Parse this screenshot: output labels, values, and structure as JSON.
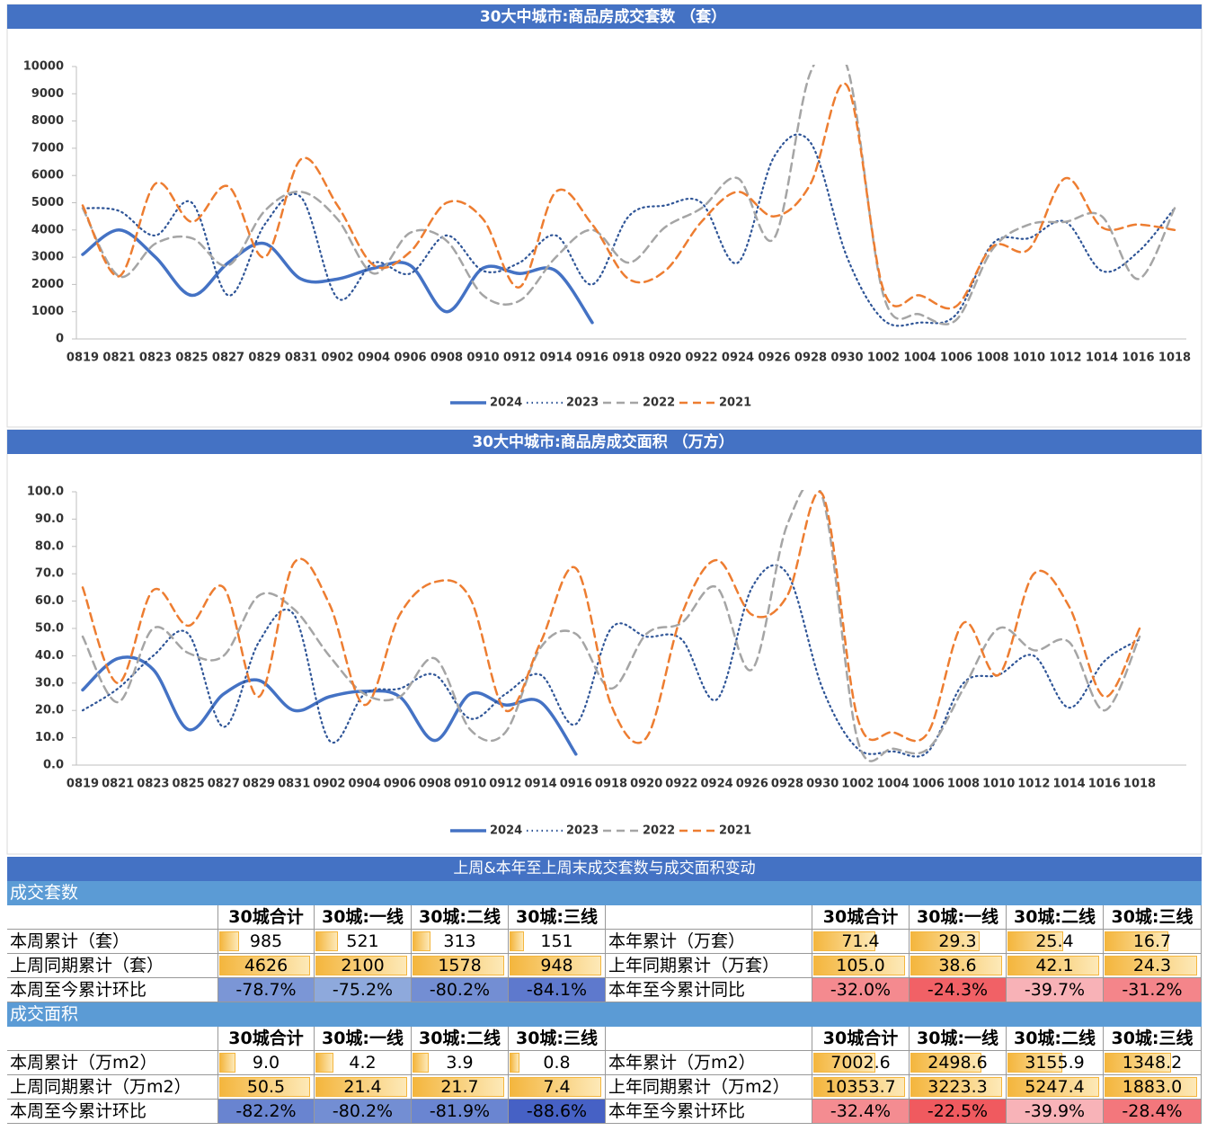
{
  "chart_data": [
    {
      "type": "line",
      "title": "30大中城市:商品房成交套数 （套）",
      "categories": [
        "0819",
        "0821",
        "0823",
        "0825",
        "0827",
        "0829",
        "0831",
        "0902",
        "0904",
        "0906",
        "0908",
        "0910",
        "0912",
        "0914",
        "0916",
        "0918",
        "0920",
        "0922",
        "0924",
        "0926",
        "0928",
        "0930",
        "1002",
        "1004",
        "1006",
        "1008",
        "1010",
        "1012",
        "1014",
        "1016",
        "1018"
      ],
      "series": [
        {
          "name": "2024",
          "color": "#4472c4",
          "dash": "solid",
          "values": [
            3100,
            4000,
            3000,
            1600,
            2800,
            3500,
            2200,
            2200,
            2600,
            2700,
            1000,
            2600,
            2400,
            2500,
            600,
            null,
            null,
            null,
            null,
            null,
            null,
            null,
            null,
            null,
            null,
            null,
            null,
            null,
            null,
            null,
            null
          ]
        },
        {
          "name": "2023",
          "color": "#2f5597",
          "dash": "dotted",
          "values": [
            4800,
            4700,
            3800,
            5000,
            1600,
            4200,
            5200,
            1500,
            2800,
            2400,
            3800,
            2500,
            2800,
            3800,
            2000,
            4500,
            4900,
            5000,
            2800,
            6700,
            7200,
            3000,
            700,
            600,
            900,
            3500,
            3700,
            4300,
            2500,
            3200,
            4800
          ]
        },
        {
          "name": "2022",
          "color": "#a5a5a5",
          "dash": "dashed",
          "values": [
            4800,
            2300,
            3500,
            3700,
            2700,
            4700,
            5400,
            4400,
            2400,
            3900,
            3600,
            1600,
            1400,
            3000,
            4000,
            2800,
            4100,
            4800,
            5900,
            3700,
            9800,
            10000,
            1600,
            900,
            700,
            3300,
            4200,
            4300,
            4500,
            2200,
            4800
          ]
        },
        {
          "name": "2021",
          "color": "#ed7d31",
          "dash": "dashed",
          "values": [
            4900,
            2300,
            5700,
            4300,
            5600,
            3000,
            6600,
            4900,
            2700,
            3200,
            5000,
            4400,
            1900,
            5400,
            4200,
            2200,
            2500,
            4300,
            5400,
            4500,
            5700,
            9300,
            1800,
            1600,
            1200,
            3400,
            3300,
            5900,
            4100,
            4200,
            4000
          ]
        }
      ],
      "ylim": [
        0,
        10000
      ],
      "yticks": [
        0,
        1000,
        2000,
        3000,
        4000,
        5000,
        6000,
        7000,
        8000,
        9000,
        10000
      ],
      "grid": false,
      "legend": "bottom"
    },
    {
      "type": "line",
      "title": "30大中城市:商品房成交面积 （万方）",
      "categories": [
        "0819",
        "0821",
        "0823",
        "0825",
        "0827",
        "0829",
        "0831",
        "0902",
        "0904",
        "0906",
        "0908",
        "0910",
        "0912",
        "0914",
        "0916",
        "0918",
        "0920",
        "0922",
        "0924",
        "0926",
        "0928",
        "0930",
        "1002",
        "1004",
        "1006",
        "1008",
        "1010",
        "1012",
        "1014",
        "1016",
        "1018"
      ],
      "series": [
        {
          "name": "2024",
          "color": "#4472c4",
          "dash": "solid",
          "values": [
            27.5,
            39,
            35,
            13,
            26,
            31,
            20,
            25,
            27,
            25,
            9,
            26,
            22,
            23,
            4,
            null,
            null,
            null,
            null,
            null,
            null,
            null,
            null,
            null,
            null,
            null,
            null,
            null,
            null,
            null,
            null
          ]
        },
        {
          "name": "2023",
          "color": "#2f5597",
          "dash": "dotted",
          "values": [
            20,
            28,
            40,
            48,
            14,
            45,
            55,
            9,
            26,
            28,
            33,
            17,
            26,
            33,
            15,
            50,
            47,
            46,
            24,
            65,
            70,
            28,
            6,
            5,
            5,
            30,
            33,
            40,
            21,
            38,
            46
          ]
        },
        {
          "name": "2022",
          "color": "#a5a5a5",
          "dash": "dashed",
          "values": [
            47,
            23,
            50,
            41,
            40,
            62,
            57,
            40,
            26,
            25,
            39,
            13,
            12,
            43,
            48,
            28,
            48,
            52,
            65,
            35,
            88,
            98,
            9,
            6,
            6,
            28,
            50,
            42,
            45,
            20,
            47
          ]
        },
        {
          "name": "2021",
          "color": "#ed7d31",
          "dash": "dashed",
          "values": [
            65,
            30,
            64,
            51,
            65,
            25,
            74,
            59,
            22,
            55,
            67,
            61,
            20,
            45,
            72,
            22,
            10,
            55,
            75,
            55,
            62,
            99,
            17,
            12,
            12,
            52,
            33,
            70,
            58,
            25,
            50
          ]
        }
      ],
      "ylim": [
        0,
        100
      ],
      "yticks": [
        {
          "value": 0,
          "label": "0.0"
        },
        {
          "value": 10,
          "label": "10.0"
        },
        {
          "value": 20,
          "label": "20.0"
        },
        {
          "value": 30,
          "label": "30.0"
        },
        {
          "value": 40,
          "label": "40.0"
        },
        {
          "value": 50,
          "label": "50.0"
        },
        {
          "value": 60,
          "label": "60.0"
        },
        {
          "value": 70,
          "label": "70.0"
        },
        {
          "value": 80,
          "label": "80.0"
        },
        {
          "value": 90,
          "label": "90.0"
        },
        {
          "value": 100,
          "label": "100.0"
        }
      ],
      "grid": false,
      "legend": "bottom"
    }
  ],
  "table": {
    "title": "上周&本年至上周末成交套数与成交面积变动",
    "header": [
      "30城合计",
      "30城:一线",
      "30城:二线",
      "30城:三线"
    ],
    "sections": [
      {
        "name": "成交套数",
        "rows": [
          {
            "label": "本周累计（套）",
            "cells": [
              "985",
              "521",
              "313",
              "151"
            ],
            "label2": "本年累计（万套）",
            "cells2": [
              "71.4",
              "29.3",
              "25.4",
              "16.7"
            ]
          },
          {
            "label": "上周同期累计（套）",
            "cells": [
              "4626",
              "2100",
              "1578",
              "948"
            ],
            "label2": "上年同期累计（万套）",
            "cells2": [
              "105.0",
              "38.6",
              "42.1",
              "24.3"
            ]
          },
          {
            "label": "本周至今累计环比",
            "cells": [
              "-78.7%",
              "-75.2%",
              "-80.2%",
              "-84.1%"
            ],
            "label2": "本年至今累计同比",
            "cells2": [
              "-32.0%",
              "-24.3%",
              "-39.7%",
              "-31.2%"
            ]
          }
        ]
      },
      {
        "name": "成交面积",
        "rows": [
          {
            "label": "本周累计（万m2）",
            "cells": [
              "9.0",
              "4.2",
              "3.9",
              "0.8"
            ],
            "label2": "本年累计（万m2）",
            "cells2": [
              "7002.6",
              "2498.6",
              "3155.9",
              "1348.2"
            ]
          },
          {
            "label": "上周同期累计（万m2）",
            "cells": [
              "50.5",
              "21.4",
              "21.7",
              "7.4"
            ],
            "label2": "上年同期累计（万m2）",
            "cells2": [
              "10353.7",
              "3223.3",
              "5247.4",
              "1883.0"
            ]
          },
          {
            "label": "本周至今累计环比",
            "cells": [
              "-82.2%",
              "-80.2%",
              "-81.9%",
              "-88.6%"
            ],
            "label2": "本年至今累计环比",
            "cells2": [
              "-32.4%",
              "-22.5%",
              "-39.9%",
              "-28.4%"
            ]
          }
        ]
      }
    ]
  }
}
